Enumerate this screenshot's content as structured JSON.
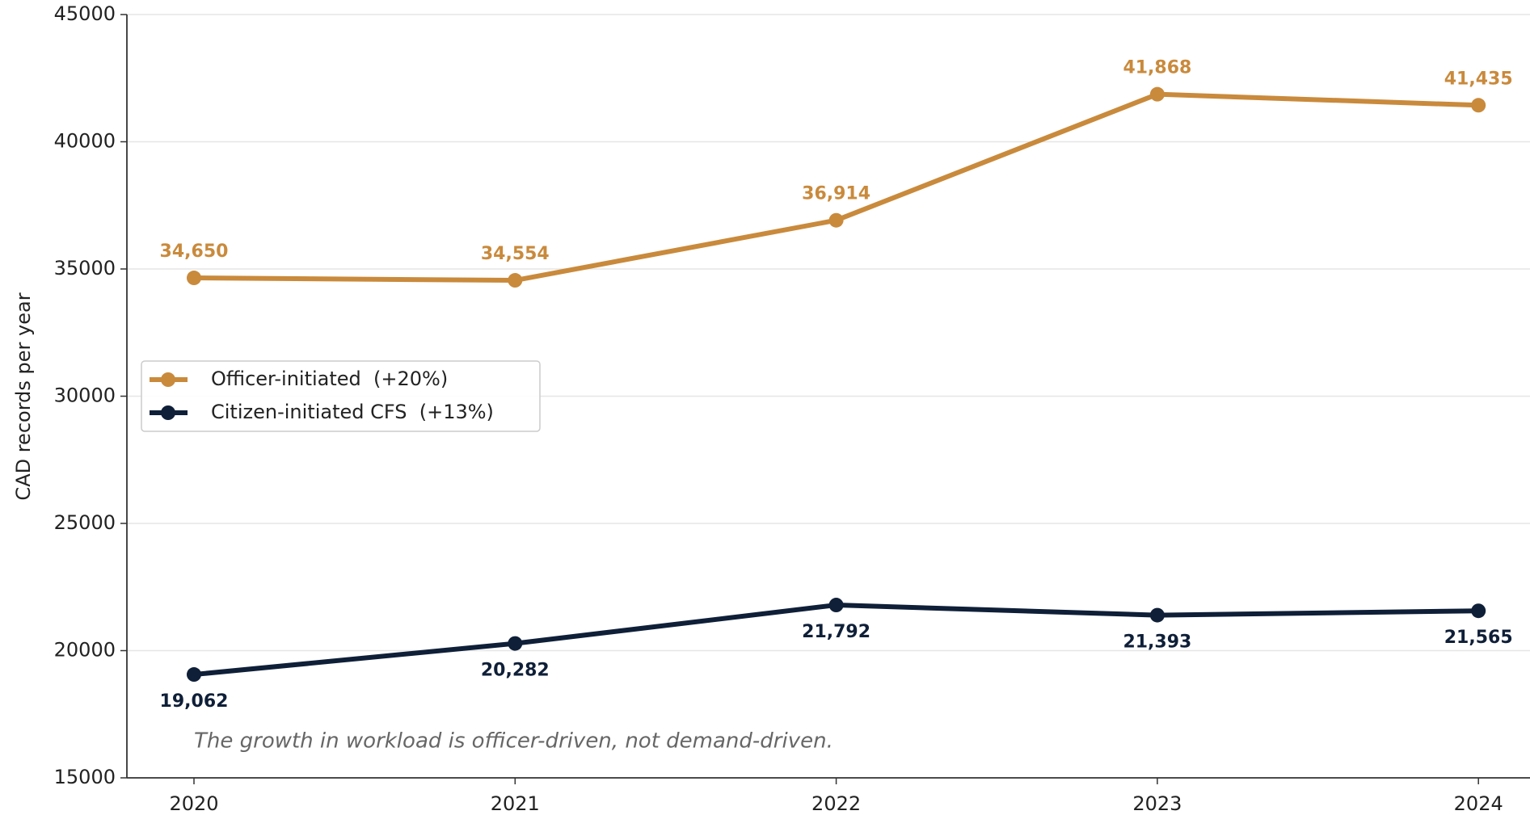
{
  "chart_data": {
    "type": "line",
    "y_label": "CAD records per year",
    "annotation": "The growth in workload is officer-driven, not demand-driven.",
    "categories": [
      "2020",
      "2021",
      "2022",
      "2023",
      "2024"
    ],
    "series": [
      {
        "name": "Officer-initiated  (+20%)",
        "color": "#c98a3c",
        "values": [
          34650,
          34554,
          36914,
          41868,
          41435
        ],
        "value_labels": [
          "34,650",
          "34,554",
          "36,914",
          "41,868",
          "41,435"
        ]
      },
      {
        "name": "Citizen-initiated CFS  (+13%)",
        "color": "#0f1f38",
        "values": [
          19062,
          20282,
          21792,
          21393,
          21565
        ],
        "value_labels": [
          "19,062",
          "20,282",
          "21,792",
          "21,393",
          "21,565"
        ]
      }
    ],
    "ylim": [
      15000,
      45000
    ],
    "yticks": [
      15000,
      20000,
      25000,
      30000,
      35000,
      40000,
      45000
    ],
    "grid": true,
    "legend": "center left"
  }
}
